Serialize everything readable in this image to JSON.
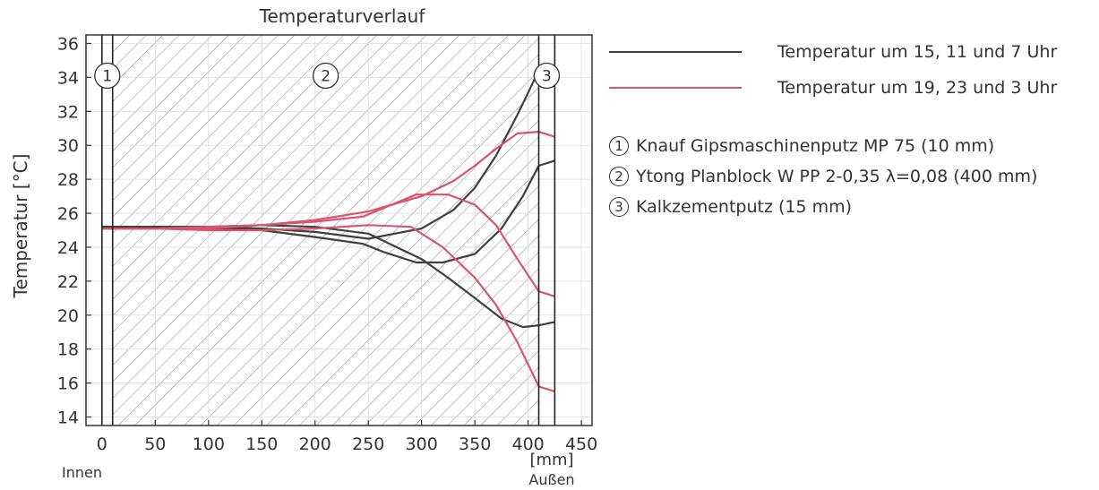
{
  "chart_data": {
    "type": "line",
    "title": "Temperaturverlauf",
    "ylabel": "Temperatur [°C]",
    "xunit": "[mm]",
    "xlabel_left": "Innen",
    "xlabel_right": "Außen",
    "xlim": [
      -15,
      460
    ],
    "ylim": [
      13.5,
      36.5
    ],
    "xticks": [
      0,
      50,
      100,
      150,
      200,
      250,
      300,
      350,
      400,
      450
    ],
    "yticks": [
      14,
      16,
      18,
      20,
      22,
      24,
      26,
      28,
      30,
      32,
      34,
      36
    ],
    "layer_boundaries_mm": [
      0,
      10,
      410,
      425
    ],
    "layer_labels": [
      "1",
      "2",
      "3"
    ],
    "legend_position": "right",
    "series": [
      {
        "name": "Temperatur um 15, 11 und 7 Uhr",
        "color": "#3f3f3f",
        "x": [
          0,
          50,
          100,
          150,
          200,
          250,
          300,
          330,
          350,
          370,
          390,
          410,
          425
        ],
        "y": [
          25.2,
          25.2,
          25.2,
          25.1,
          24.9,
          24.5,
          25.1,
          26.2,
          27.5,
          29.4,
          31.8,
          34.4,
          34.6
        ]
      },
      {
        "name": "Temperatur um 15, 11 und 7 Uhr",
        "color": "#3f3f3f",
        "x": [
          0,
          50,
          100,
          150,
          200,
          245,
          265,
          295,
          320,
          350,
          375,
          395,
          410,
          425
        ],
        "y": [
          25.2,
          25.2,
          25.1,
          25.0,
          24.6,
          24.2,
          23.7,
          23.1,
          23.1,
          23.6,
          25.1,
          27.0,
          28.8,
          29.1
        ]
      },
      {
        "name": "Temperatur um 15, 11 und 7 Uhr",
        "color": "#3f3f3f",
        "x": [
          0,
          50,
          100,
          150,
          200,
          250,
          300,
          325,
          350,
          375,
          395,
          410,
          425
        ],
        "y": [
          25.2,
          25.2,
          25.2,
          25.3,
          25.2,
          24.8,
          23.3,
          22.2,
          21.0,
          19.8,
          19.3,
          19.4,
          19.6
        ]
      },
      {
        "name": "Temperatur um 19, 23 und 3 Uhr",
        "color": "#d9546f",
        "x": [
          0,
          50,
          100,
          150,
          200,
          250,
          300,
          330,
          350,
          370,
          390,
          410,
          425
        ],
        "y": [
          25.1,
          25.1,
          25.2,
          25.3,
          25.6,
          26.1,
          27.0,
          27.9,
          28.8,
          29.8,
          30.7,
          30.8,
          30.5
        ]
      },
      {
        "name": "Temperatur um 19, 23 und 3 Uhr",
        "color": "#d9546f",
        "x": [
          0,
          50,
          100,
          150,
          200,
          245,
          295,
          325,
          350,
          370,
          390,
          410,
          425
        ],
        "y": [
          25.1,
          25.1,
          25.1,
          25.3,
          25.5,
          25.8,
          27.1,
          27.1,
          26.5,
          25.3,
          23.3,
          21.4,
          21.1
        ]
      },
      {
        "name": "Temperatur um 19, 23 und 3 Uhr",
        "color": "#d9546f",
        "x": [
          0,
          50,
          100,
          150,
          200,
          250,
          290,
          320,
          350,
          370,
          390,
          410,
          425
        ],
        "y": [
          25.1,
          25.1,
          25.0,
          25.0,
          25.1,
          25.3,
          25.2,
          24.0,
          22.2,
          20.6,
          18.4,
          15.8,
          15.5
        ]
      }
    ]
  },
  "legend": {
    "items": [
      {
        "label": "Temperatur um 15, 11 und 7 Uhr",
        "color": "#3f3f3f"
      },
      {
        "label": "Temperatur um 19, 23 und 3 Uhr",
        "color": "#d9546f"
      }
    ],
    "materials": [
      {
        "num": "1",
        "label": "Knauf Gipsmaschinenputz MP 75 (10 mm)"
      },
      {
        "num": "2",
        "label": "Ytong Planblock W PP 2-0,35 λ=0,08 (400 mm)"
      },
      {
        "num": "3",
        "label": "Kalkzementputz (15 mm)"
      }
    ]
  }
}
